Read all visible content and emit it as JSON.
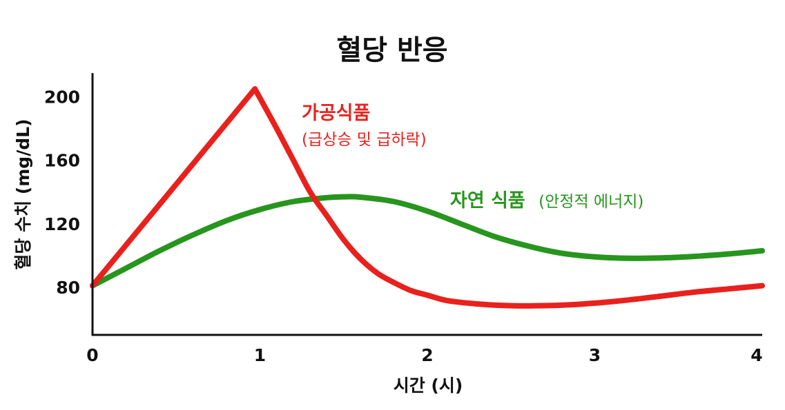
{
  "chart_data": {
    "type": "line",
    "title": "혈당 반응",
    "xlabel": "시간 (시)",
    "ylabel": "혈당 수치 (mg/dL)",
    "xlim": [
      0,
      4
    ],
    "ylim": [
      50,
      215
    ],
    "x_ticks": [
      0,
      1,
      2,
      3,
      4
    ],
    "y_ticks": [
      80,
      120,
      160,
      200
    ],
    "grid": false,
    "legend": "none",
    "series": [
      {
        "name": "가공식품",
        "note": "(급상승 및 급하락)",
        "color": "#e8211d",
        "points": [
          [
            0,
            81
          ],
          [
            0.97,
            205
          ],
          [
            1.1,
            180
          ],
          [
            1.2,
            160
          ],
          [
            1.3,
            140
          ],
          [
            1.4,
            125
          ],
          [
            1.5,
            110
          ],
          [
            1.6,
            98
          ],
          [
            1.7,
            89
          ],
          [
            1.8,
            83
          ],
          [
            1.9,
            78
          ],
          [
            2.0,
            75
          ],
          [
            2.1,
            72
          ],
          [
            2.2,
            70.5
          ],
          [
            2.3,
            69.5
          ],
          [
            2.4,
            68.8
          ],
          [
            2.5,
            68.4
          ],
          [
            2.6,
            68.3
          ],
          [
            2.8,
            68.7
          ],
          [
            3.0,
            70
          ],
          [
            3.2,
            72
          ],
          [
            3.4,
            74.5
          ],
          [
            3.6,
            77
          ],
          [
            3.8,
            79
          ],
          [
            4.0,
            81
          ]
        ]
      },
      {
        "name": "자연 식품",
        "note": "(안정적 에너지)",
        "color": "#27951e",
        "points": [
          [
            0,
            81
          ],
          [
            0.2,
            92
          ],
          [
            0.4,
            103
          ],
          [
            0.6,
            113
          ],
          [
            0.8,
            122
          ],
          [
            1.0,
            129
          ],
          [
            1.2,
            134
          ],
          [
            1.4,
            136.5
          ],
          [
            1.5,
            137
          ],
          [
            1.6,
            136.8
          ],
          [
            1.8,
            134
          ],
          [
            2.0,
            128
          ],
          [
            2.2,
            120
          ],
          [
            2.4,
            112
          ],
          [
            2.6,
            106
          ],
          [
            2.8,
            101.5
          ],
          [
            3.0,
            99.2
          ],
          [
            3.2,
            98.3
          ],
          [
            3.4,
            98.5
          ],
          [
            3.6,
            99.5
          ],
          [
            3.8,
            101
          ],
          [
            4.0,
            103
          ]
        ]
      }
    ]
  }
}
